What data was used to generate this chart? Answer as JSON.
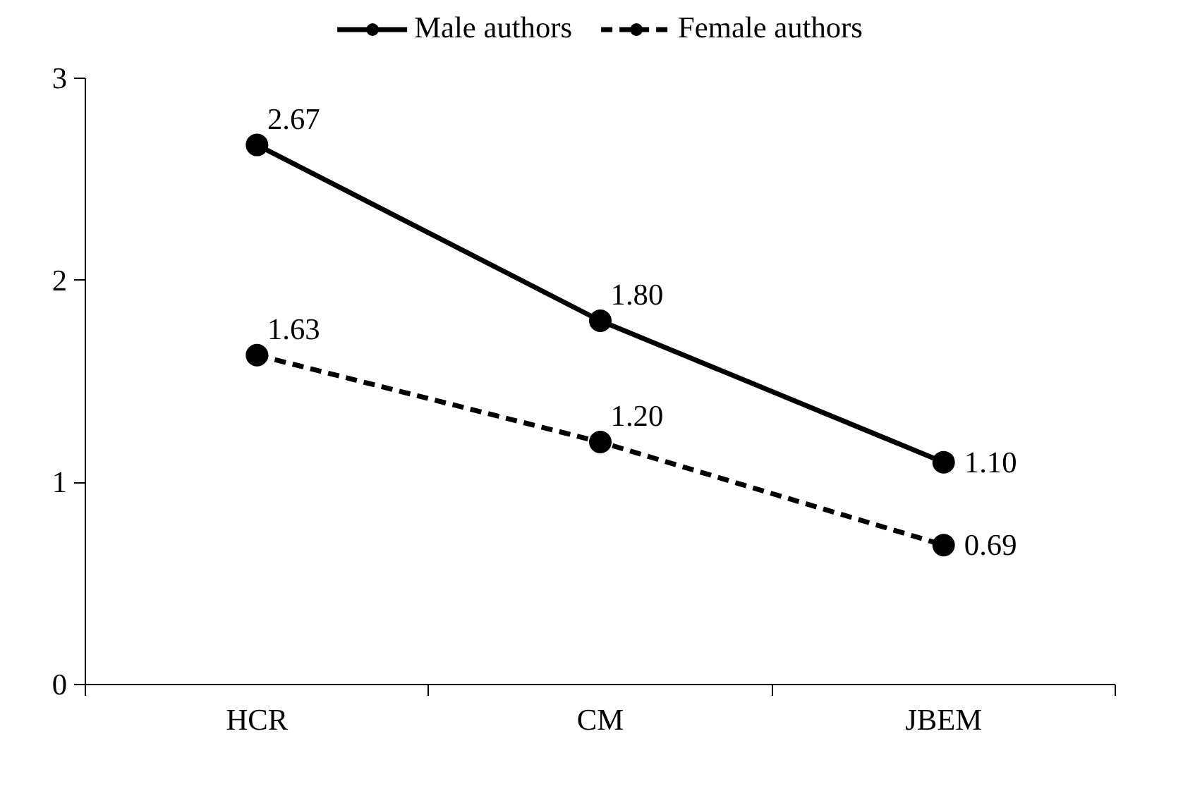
{
  "chart_data": {
    "type": "line",
    "categories": [
      "HCR",
      "CM",
      "JBEM"
    ],
    "series": [
      {
        "name": "Male authors",
        "color": "#000000",
        "line_style": "solid",
        "values": [
          2.67,
          1.8,
          1.1
        ],
        "value_labels": [
          "2.67",
          "1.80",
          "1.10"
        ]
      },
      {
        "name": "Female authors",
        "color": "#000000",
        "line_style": "dashed",
        "values": [
          1.63,
          1.2,
          0.69
        ],
        "value_labels": [
          "1.63",
          "1.20",
          "0.69"
        ]
      }
    ],
    "ylim": [
      0,
      3
    ],
    "yticks": [
      0,
      1,
      2,
      3
    ],
    "grid": false,
    "legend": "top",
    "marker": "circle"
  }
}
